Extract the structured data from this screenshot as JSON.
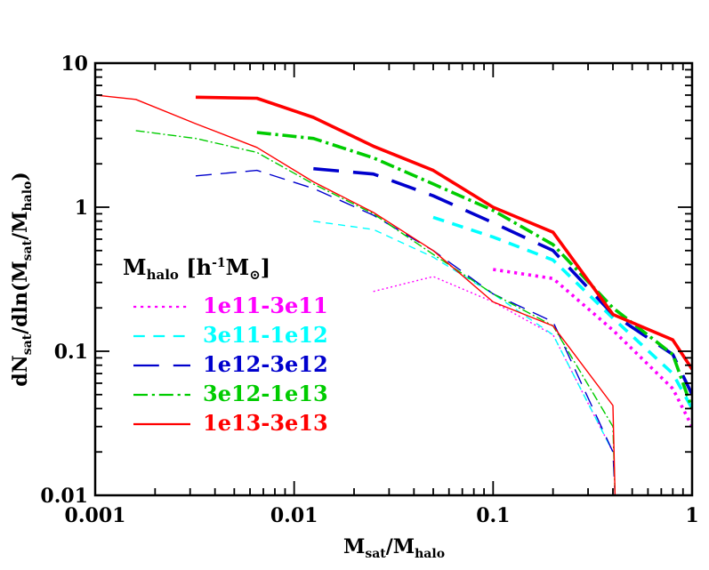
{
  "chart_data": {
    "type": "line",
    "xlabel": "M_sat/M_halo",
    "ylabel": "dN_sat/dln(M_sat/M_halo)",
    "xscale": "log",
    "yscale": "log",
    "xlim": [
      0.001,
      1
    ],
    "ylim": [
      0.01,
      10
    ],
    "x_ticks": [
      {
        "value": 0.001,
        "label": "0.001"
      },
      {
        "value": 0.01,
        "label": "0.01"
      },
      {
        "value": 0.1,
        "label": "0.1"
      },
      {
        "value": 1,
        "label": "1"
      }
    ],
    "y_ticks": [
      {
        "value": 0.01,
        "label": "0.01"
      },
      {
        "value": 0.1,
        "label": "0.1"
      },
      {
        "value": 1,
        "label": "1"
      },
      {
        "value": 10,
        "label": "10"
      }
    ],
    "grid": false,
    "legend": {
      "title": "M_halo [h^-1 M_sun]",
      "placement": "center-left"
    },
    "series": [
      {
        "name": "1e11-3e11",
        "color": "#ff00ff",
        "dash": "dotted",
        "points": [
          {
            "group": "thin",
            "x": [
              0.025,
              0.05,
              0.1,
              0.2,
              0.4
            ],
            "y": [
              0.26,
              0.33,
              0.22,
              0.13,
              0.02
            ]
          },
          {
            "group": "thick",
            "x": [
              0.1,
              0.2,
              0.4,
              0.8,
              1.0
            ],
            "y": [
              0.37,
              0.32,
              0.14,
              0.055,
              0.03
            ]
          }
        ]
      },
      {
        "name": "3e11-1e12",
        "color": "#00ffff",
        "dash": "short-dash",
        "points": [
          {
            "group": "thin",
            "x": [
              0.0125,
              0.025,
              0.05,
              0.1,
              0.2,
              0.4
            ],
            "y": [
              0.8,
              0.7,
              0.45,
              0.25,
              0.13,
              0.02
            ]
          },
          {
            "group": "thick",
            "x": [
              0.05,
              0.1,
              0.2,
              0.4,
              0.8,
              1.0
            ],
            "y": [
              0.85,
              0.62,
              0.43,
              0.17,
              0.07,
              0.04
            ]
          }
        ]
      },
      {
        "name": "1e12-3e12",
        "color": "#0000cd",
        "dash": "long-dash",
        "points": [
          {
            "group": "thin",
            "x": [
              0.0032,
              0.0065,
              0.0125,
              0.025,
              0.05,
              0.1,
              0.2,
              0.4,
              0.41
            ],
            "y": [
              1.65,
              1.8,
              1.35,
              0.88,
              0.5,
              0.25,
              0.16,
              0.02,
              0.01
            ]
          },
          {
            "group": "thick",
            "x": [
              0.0125,
              0.025,
              0.05,
              0.1,
              0.2,
              0.4,
              0.8,
              1.0
            ],
            "y": [
              1.85,
              1.7,
              1.2,
              0.78,
              0.5,
              0.18,
              0.095,
              0.05
            ]
          }
        ]
      },
      {
        "name": "3e12-1e13",
        "color": "#00cc00",
        "dash": "dash-dot",
        "points": [
          {
            "group": "thin",
            "x": [
              0.0016,
              0.0032,
              0.0065,
              0.0125,
              0.025,
              0.05,
              0.1,
              0.2,
              0.4,
              0.41
            ],
            "y": [
              3.4,
              3.0,
              2.4,
              1.45,
              0.9,
              0.47,
              0.25,
              0.15,
              0.03,
              0.01
            ]
          },
          {
            "group": "thick",
            "x": [
              0.0065,
              0.0125,
              0.025,
              0.05,
              0.1,
              0.2,
              0.4,
              0.8,
              1.0
            ],
            "y": [
              3.3,
              3.0,
              2.2,
              1.45,
              0.95,
              0.55,
              0.2,
              0.095,
              0.04
            ]
          }
        ]
      },
      {
        "name": "1e13-3e13",
        "color": "#ff0000",
        "dash": "solid",
        "points": [
          {
            "group": "thin",
            "x": [
              0.001,
              0.0016,
              0.0032,
              0.0065,
              0.0125,
              0.025,
              0.05,
              0.1,
              0.2,
              0.4,
              0.41
            ],
            "y": [
              6.0,
              5.6,
              3.8,
              2.6,
              1.5,
              0.92,
              0.5,
              0.22,
              0.15,
              0.042,
              0.01
            ]
          },
          {
            "group": "thick",
            "x": [
              0.0032,
              0.0065,
              0.0125,
              0.025,
              0.05,
              0.1,
              0.2,
              0.4,
              0.8,
              1.0
            ],
            "y": [
              5.8,
              5.7,
              4.2,
              2.65,
              1.8,
              1.0,
              0.67,
              0.18,
              0.12,
              0.075
            ]
          }
        ]
      }
    ]
  }
}
